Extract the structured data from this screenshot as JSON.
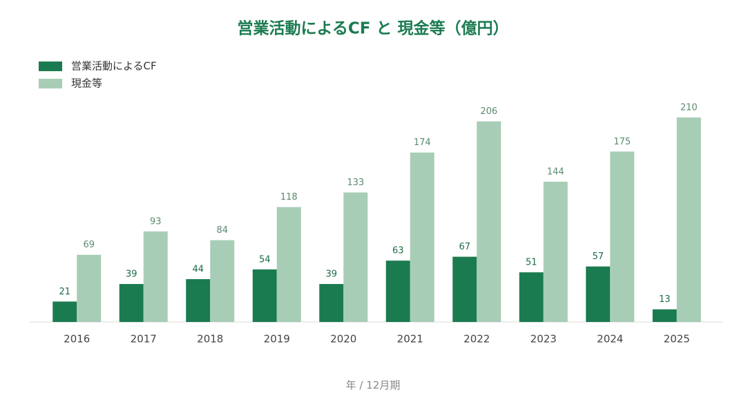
{
  "chart_data": {
    "type": "bar",
    "title": "営業活動によるCF と 現金等（億円）",
    "x_label": "年 / 12月期",
    "categories": [
      "2016",
      "2017",
      "2018",
      "2019",
      "2020",
      "2021",
      "2022",
      "2023",
      "2024",
      "2025"
    ],
    "series": [
      {
        "name": "営業活動によるCF",
        "color": "#1b7b50",
        "label_color": "#1b6b45",
        "values": [
          21,
          39,
          44,
          54,
          39,
          63,
          67,
          51,
          57,
          13
        ]
      },
      {
        "name": "現金等",
        "color": "#a8cdb6",
        "label_color": "#5a8a6e",
        "values": [
          69,
          93,
          84,
          118,
          133,
          174,
          206,
          144,
          175,
          210
        ]
      }
    ],
    "ylim": [
      0,
      210
    ],
    "legend": "top-left"
  }
}
